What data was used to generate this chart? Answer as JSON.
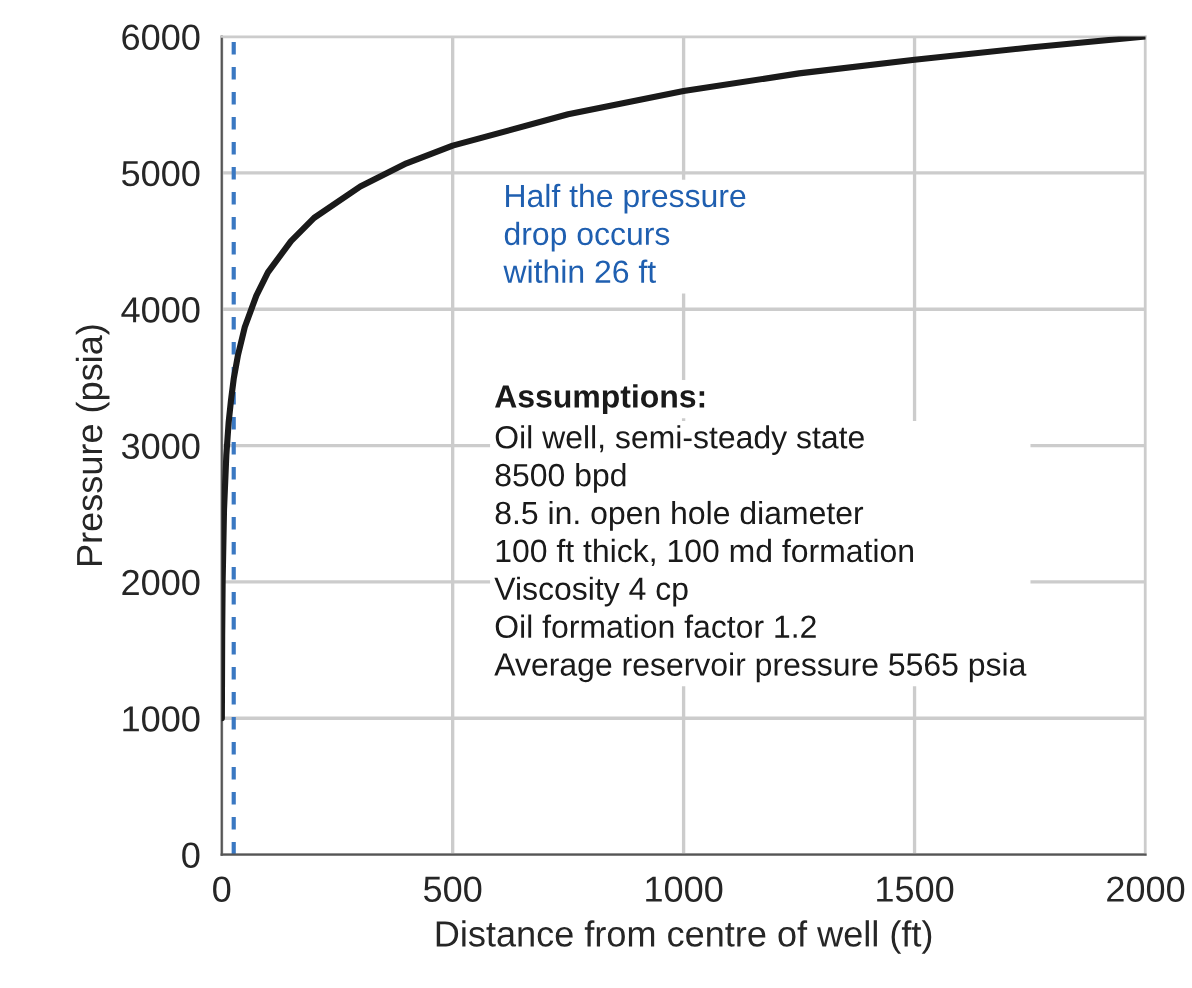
{
  "chart_data": {
    "type": "line",
    "xlabel": "Distance from centre of well (ft)",
    "ylabel": "Pressure (psia)",
    "series": [
      {
        "color": "#1a1a1a",
        "x": [
          0.35,
          1,
          2,
          5,
          10,
          15,
          20,
          26,
          35,
          50,
          75,
          100,
          150,
          200,
          300,
          400,
          500,
          750,
          1000,
          1250,
          1500,
          1750,
          2000
        ],
        "values": [
          1000,
          1600,
          2000,
          2530,
          2930,
          3170,
          3330,
          3490,
          3660,
          3870,
          4100,
          4270,
          4500,
          4670,
          4900,
          5070,
          5200,
          5430,
          5600,
          5730,
          5830,
          5920,
          6000
        ]
      }
    ],
    "xlim": [
      0,
      2000
    ],
    "ylim": [
      0,
      6000
    ],
    "xticks": [
      0,
      500,
      1000,
      1500,
      2000
    ],
    "yticks": [
      0,
      1000,
      2000,
      3000,
      4000,
      5000,
      6000
    ],
    "grid": true,
    "marker": "none",
    "line_style": "solid",
    "ref_lines": [
      {
        "axis": "x",
        "value": 26,
        "color": "#3a78c2",
        "line_style": "dashed"
      }
    ],
    "annotations": [
      "Half the pressure\ndrop occurs\nwithin 26 ft",
      "Assumptions:",
      "Oil well, semi-steady state\n8500 bpd\n8.5 in. open hole diameter\n100 ft thick, 100 md formation\nViscosity 4 cp\nOil formation factor 1.2\nAverage reservoir pressure 5565 psia"
    ]
  }
}
